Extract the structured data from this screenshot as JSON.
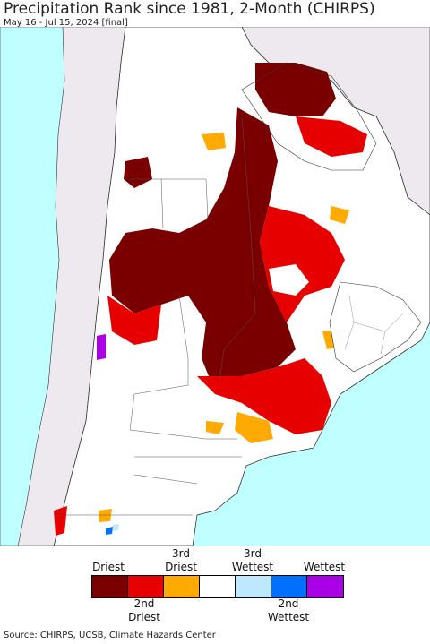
{
  "header": {
    "title": "Precipitation Rank since 1981, 2-Month (CHIRPS)",
    "subtitle": "May 16 - Jul 15, 2024 [final]"
  },
  "colors": {
    "ocean": "#bfffff",
    "land_outside": "#ede9ee",
    "no_anomaly": "#ffffff",
    "driest": "#7a0000",
    "second_driest": "#e60000",
    "third_driest": "#ffaa00",
    "third_wettest": "#bee8ff",
    "second_wettest": "#0070ff",
    "wettest": "#a900e6"
  },
  "legend": {
    "top_labels": {
      "driest": "Driest",
      "third_driest": "3rd\nDriest",
      "third_wettest": "3rd\nWettest",
      "wettest": "Wettest"
    },
    "bottom_labels": {
      "second_driest": "2nd\nDriest",
      "second_wettest": "2nd\nWettest"
    },
    "classes": [
      "driest",
      "second_driest",
      "third_driest",
      "normal",
      "third_wettest",
      "second_wettest",
      "wettest"
    ]
  },
  "footer": {
    "source": "Source: CHIRPS, UCSB, Climate Hazards Center"
  }
}
